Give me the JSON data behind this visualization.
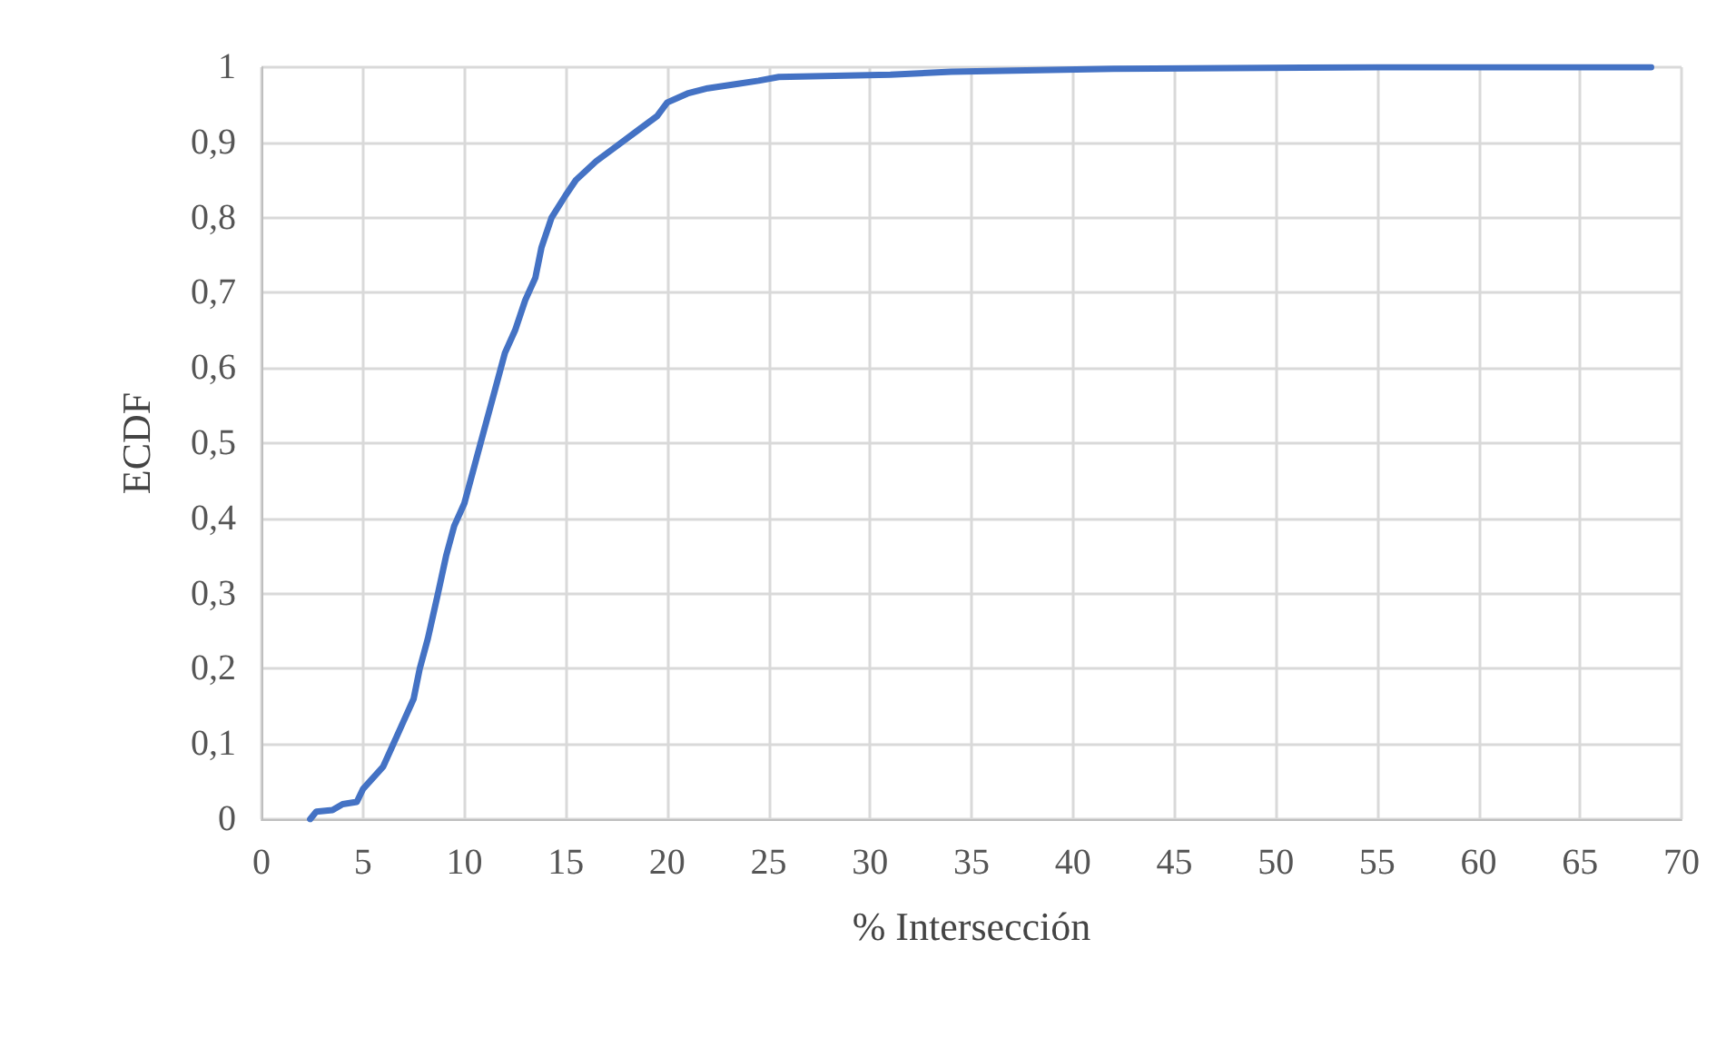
{
  "chart_data": {
    "type": "line",
    "xlabel": "% Intersección",
    "ylabel": "ECDF",
    "xlim": [
      0,
      70
    ],
    "xticks": [
      0,
      5,
      10,
      15,
      20,
      25,
      30,
      35,
      40,
      45,
      50,
      55,
      60,
      65,
      70
    ],
    "ylim": [
      0,
      1
    ],
    "yticks": [
      {
        "value": 0,
        "label": "0"
      },
      {
        "value": 0.1,
        "label": "0,1"
      },
      {
        "value": 0.2,
        "label": "0,2"
      },
      {
        "value": 0.3,
        "label": "0,3"
      },
      {
        "value": 0.4,
        "label": "0,4"
      },
      {
        "value": 0.5,
        "label": "0,5"
      },
      {
        "value": 0.6,
        "label": "0,6"
      },
      {
        "value": 0.7,
        "label": "0,7"
      },
      {
        "value": 0.8,
        "label": "0,8"
      },
      {
        "value": 0.9,
        "label": "0,9"
      },
      {
        "value": 1,
        "label": "1"
      }
    ],
    "grid": true,
    "marker": "none",
    "line_style": "solid",
    "series": [
      {
        "color": "#4472c4",
        "x": [
          2.4,
          2.7,
          3.5,
          4,
          4.7,
          5,
          6,
          6.5,
          7,
          7.5,
          7.8,
          8.2,
          8.7,
          9.1,
          9.5,
          10,
          10.5,
          11,
          11.5,
          12,
          12.5,
          13,
          13.5,
          13.8,
          14.3,
          15,
          15.5,
          16.5,
          17.5,
          18.5,
          19.5,
          20,
          21,
          22,
          23.5,
          24.5,
          25.5,
          31,
          34,
          42,
          55,
          68.5
        ],
        "values": [
          0,
          0.01,
          0.012,
          0.02,
          0.023,
          0.04,
          0.07,
          0.1,
          0.13,
          0.16,
          0.2,
          0.24,
          0.3,
          0.35,
          0.39,
          0.42,
          0.47,
          0.52,
          0.57,
          0.62,
          0.65,
          0.69,
          0.72,
          0.76,
          0.8,
          0.83,
          0.85,
          0.875,
          0.895,
          0.915,
          0.935,
          0.953,
          0.965,
          0.972,
          0.978,
          0.982,
          0.987,
          0.99,
          0.994,
          0.998,
          1,
          1
        ]
      }
    ]
  }
}
